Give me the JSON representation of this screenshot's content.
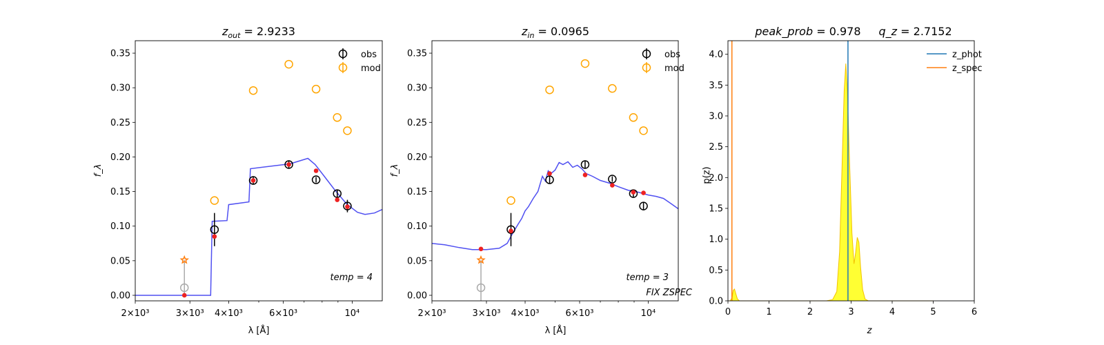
{
  "chart_data": [
    {
      "type": "scatter",
      "panel": "sed-zout",
      "title": "z_out = 2.9233",
      "title_parts": {
        "var": "z",
        "sub": "out",
        "rest": " = 2.9233"
      },
      "xlabel": "λ [Å]",
      "ylabel": "f_λ",
      "xscale": "log",
      "xlim": [
        2000,
        12500
      ],
      "ylim": [
        -0.008,
        0.368
      ],
      "xticks": [
        {
          "value": 2000,
          "label": "2×10³"
        },
        {
          "value": 3000,
          "label": "3×10³"
        },
        {
          "value": 4000,
          "label": "4×10³"
        },
        {
          "value": 6000,
          "label": "6×10³"
        },
        {
          "value": 10000,
          "label": "10⁴"
        }
      ],
      "yticks": [
        0.0,
        0.05,
        0.1,
        0.15,
        0.2,
        0.25,
        0.3,
        0.35
      ],
      "ytick_labels": [
        "0.00",
        "0.05",
        "0.10",
        "0.15",
        "0.20",
        "0.25",
        "0.30",
        "0.35"
      ],
      "annotation": "temp = 4",
      "annotation2": "",
      "legend": {
        "position": "top-right",
        "entries": [
          "obs",
          "mod"
        ]
      },
      "series": [
        {
          "name": "obs",
          "kind": "errorbar",
          "color": "#000000",
          "points": [
            {
              "x": 3600,
              "y": 0.095,
              "err": 0.024
            },
            {
              "x": 4800,
              "y": 0.166,
              "err": 0.006
            },
            {
              "x": 6250,
              "y": 0.189,
              "err": 0.005
            },
            {
              "x": 7650,
              "y": 0.167,
              "err": 0.004
            },
            {
              "x": 8950,
              "y": 0.147,
              "err": 0.006
            },
            {
              "x": 9650,
              "y": 0.129,
              "err": 0.009
            }
          ]
        },
        {
          "name": "mod",
          "kind": "open-circle",
          "color": "#ffa500",
          "points": [
            {
              "x": 3600,
              "y": 0.137
            },
            {
              "x": 4800,
              "y": 0.296
            },
            {
              "x": 6250,
              "y": 0.334
            },
            {
              "x": 7650,
              "y": 0.298
            },
            {
              "x": 8950,
              "y": 0.257
            },
            {
              "x": 9650,
              "y": 0.238
            }
          ]
        },
        {
          "name": "",
          "kind": "dot",
          "color": "#ee2222",
          "points": [
            {
              "x": 2880,
              "y": 0.0
            },
            {
              "x": 3600,
              "y": 0.085
            },
            {
              "x": 4800,
              "y": 0.166
            },
            {
              "x": 6250,
              "y": 0.189
            },
            {
              "x": 7650,
              "y": 0.18
            },
            {
              "x": 8950,
              "y": 0.138
            },
            {
              "x": 9650,
              "y": 0.128
            }
          ]
        },
        {
          "name": "",
          "kind": "line",
          "color": "#3c3cf0",
          "points": [
            {
              "x": 2000,
              "y": 0.0
            },
            {
              "x": 3500,
              "y": 0.0
            },
            {
              "x": 3540,
              "y": 0.107
            },
            {
              "x": 3950,
              "y": 0.108
            },
            {
              "x": 4000,
              "y": 0.131
            },
            {
              "x": 4650,
              "y": 0.135
            },
            {
              "x": 4700,
              "y": 0.183
            },
            {
              "x": 6300,
              "y": 0.19
            },
            {
              "x": 7200,
              "y": 0.198
            },
            {
              "x": 7600,
              "y": 0.189
            },
            {
              "x": 8100,
              "y": 0.173
            },
            {
              "x": 8800,
              "y": 0.152
            },
            {
              "x": 9600,
              "y": 0.132
            },
            {
              "x": 10400,
              "y": 0.12
            },
            {
              "x": 11000,
              "y": 0.117
            },
            {
              "x": 11800,
              "y": 0.119
            },
            {
              "x": 12500,
              "y": 0.124
            }
          ]
        },
        {
          "name": "",
          "kind": "stem",
          "color": "#aaaaaa",
          "star_color": "#ff7f0e",
          "points": [
            {
              "x": 2880,
              "y_low": 0.0,
              "y_circle": 0.011,
              "y_star": 0.051
            }
          ]
        }
      ]
    },
    {
      "type": "scatter",
      "panel": "sed-zin",
      "title": "z_in = 0.0965",
      "title_parts": {
        "var": "z",
        "sub": "in",
        "rest": " = 0.0965"
      },
      "xlabel": "λ [Å]",
      "ylabel": "f_λ",
      "xscale": "log",
      "xlim": [
        2000,
        12500
      ],
      "ylim": [
        -0.008,
        0.368
      ],
      "xticks": [
        {
          "value": 2000,
          "label": "2×10³"
        },
        {
          "value": 3000,
          "label": "3×10³"
        },
        {
          "value": 4000,
          "label": "4×10³"
        },
        {
          "value": 6000,
          "label": "6×10³"
        },
        {
          "value": 10000,
          "label": "10⁴"
        }
      ],
      "yticks": [
        0.0,
        0.05,
        0.1,
        0.15,
        0.2,
        0.25,
        0.3,
        0.35
      ],
      "ytick_labels": [
        "0.00",
        "0.05",
        "0.10",
        "0.15",
        "0.20",
        "0.25",
        "0.30",
        "0.35"
      ],
      "annotation": "temp = 3",
      "annotation2": "FIX ZSPEC",
      "legend": {
        "position": "top-right",
        "entries": [
          "obs",
          "mod"
        ]
      },
      "series": [
        {
          "name": "obs",
          "kind": "errorbar",
          "color": "#000000",
          "points": [
            {
              "x": 3600,
              "y": 0.095,
              "err": 0.024
            },
            {
              "x": 4800,
              "y": 0.167,
              "err": 0.006
            },
            {
              "x": 6250,
              "y": 0.189,
              "err": 0.006
            },
            {
              "x": 7650,
              "y": 0.168,
              "err": 0.004
            },
            {
              "x": 8950,
              "y": 0.147,
              "err": 0.005
            },
            {
              "x": 9650,
              "y": 0.129,
              "err": 0.006
            }
          ]
        },
        {
          "name": "mod",
          "kind": "open-circle",
          "color": "#ffa500",
          "points": [
            {
              "x": 3600,
              "y": 0.137
            },
            {
              "x": 4800,
              "y": 0.297
            },
            {
              "x": 6250,
              "y": 0.335
            },
            {
              "x": 7650,
              "y": 0.299
            },
            {
              "x": 8950,
              "y": 0.257
            },
            {
              "x": 9650,
              "y": 0.238
            }
          ]
        },
        {
          "name": "",
          "kind": "dot",
          "color": "#ee2222",
          "points": [
            {
              "x": 2880,
              "y": 0.067
            },
            {
              "x": 3600,
              "y": 0.093
            },
            {
              "x": 4800,
              "y": 0.176
            },
            {
              "x": 6250,
              "y": 0.174
            },
            {
              "x": 7650,
              "y": 0.159
            },
            {
              "x": 8950,
              "y": 0.149
            },
            {
              "x": 9650,
              "y": 0.148
            }
          ]
        },
        {
          "name": "",
          "kind": "line",
          "color": "#3c3cf0",
          "points": [
            {
              "x": 2000,
              "y": 0.075
            },
            {
              "x": 2200,
              "y": 0.073
            },
            {
              "x": 2450,
              "y": 0.069
            },
            {
              "x": 2700,
              "y": 0.066
            },
            {
              "x": 3000,
              "y": 0.066
            },
            {
              "x": 3300,
              "y": 0.068
            },
            {
              "x": 3500,
              "y": 0.075
            },
            {
              "x": 3650,
              "y": 0.09
            },
            {
              "x": 3800,
              "y": 0.103
            },
            {
              "x": 3900,
              "y": 0.111
            },
            {
              "x": 4000,
              "y": 0.122
            },
            {
              "x": 4100,
              "y": 0.128
            },
            {
              "x": 4250,
              "y": 0.14
            },
            {
              "x": 4400,
              "y": 0.15
            },
            {
              "x": 4550,
              "y": 0.172
            },
            {
              "x": 4650,
              "y": 0.165
            },
            {
              "x": 4750,
              "y": 0.18
            },
            {
              "x": 4850,
              "y": 0.176
            },
            {
              "x": 5000,
              "y": 0.181
            },
            {
              "x": 5150,
              "y": 0.192
            },
            {
              "x": 5300,
              "y": 0.189
            },
            {
              "x": 5500,
              "y": 0.193
            },
            {
              "x": 5700,
              "y": 0.185
            },
            {
              "x": 5900,
              "y": 0.188
            },
            {
              "x": 6100,
              "y": 0.183
            },
            {
              "x": 6300,
              "y": 0.176
            },
            {
              "x": 6600,
              "y": 0.172
            },
            {
              "x": 7000,
              "y": 0.166
            },
            {
              "x": 7500,
              "y": 0.162
            },
            {
              "x": 8000,
              "y": 0.157
            },
            {
              "x": 8600,
              "y": 0.152
            },
            {
              "x": 9300,
              "y": 0.149
            },
            {
              "x": 10000,
              "y": 0.145
            },
            {
              "x": 10600,
              "y": 0.143
            },
            {
              "x": 11200,
              "y": 0.14
            },
            {
              "x": 11800,
              "y": 0.133
            },
            {
              "x": 12500,
              "y": 0.125
            }
          ]
        },
        {
          "name": "",
          "kind": "stem",
          "color": "#aaaaaa",
          "star_color": "#ff7f0e",
          "points": [
            {
              "x": 2880,
              "y_low": -0.008,
              "y_circle": 0.011,
              "y_star": 0.051
            }
          ]
        }
      ]
    },
    {
      "type": "area",
      "panel": "pz",
      "title": "peak_prob = 0.978     q_z = 2.7152",
      "title_parts": {
        "left": "peak_prob",
        "left_val": " = 0.978",
        "right": "q_z",
        "right_val": " = 2.7152"
      },
      "xlabel": "z",
      "ylabel": "p(z)",
      "xlim": [
        0,
        6
      ],
      "ylim": [
        0,
        4.22
      ],
      "xticks": [
        0,
        1,
        2,
        3,
        4,
        5,
        6
      ],
      "xtick_labels": [
        "0",
        "1",
        "2",
        "3",
        "4",
        "5",
        "6"
      ],
      "yticks": [
        0.0,
        0.5,
        1.0,
        1.5,
        2.0,
        2.5,
        3.0,
        3.5,
        4.0
      ],
      "ytick_labels": [
        "0.0",
        "0.5",
        "1.0",
        "1.5",
        "2.0",
        "2.5",
        "3.0",
        "3.5",
        "4.0"
      ],
      "legend": {
        "position": "top-right",
        "entries": [
          "z_phot",
          "z_spec"
        ]
      },
      "vlines": [
        {
          "name": "z_phot",
          "x": 2.9233,
          "color": "#1f77b4"
        },
        {
          "name": "z_spec",
          "x": 0.0965,
          "color": "#ff7f0e"
        }
      ],
      "fill_color": "#ffff33",
      "edge_color": "#f2c200",
      "pz": [
        [
          0.0,
          0.0
        ],
        [
          0.05,
          0.0
        ],
        [
          0.1,
          0.05
        ],
        [
          0.13,
          0.17
        ],
        [
          0.16,
          0.19
        ],
        [
          0.19,
          0.12
        ],
        [
          0.23,
          0.03
        ],
        [
          0.28,
          0.0
        ],
        [
          2.4,
          0.0
        ],
        [
          2.55,
          0.02
        ],
        [
          2.65,
          0.15
        ],
        [
          2.72,
          0.8
        ],
        [
          2.78,
          2.2
        ],
        [
          2.83,
          3.4
        ],
        [
          2.87,
          3.85
        ],
        [
          2.91,
          3.4
        ],
        [
          2.96,
          2.3
        ],
        [
          3.02,
          1.1
        ],
        [
          3.07,
          0.6
        ],
        [
          3.11,
          0.78
        ],
        [
          3.15,
          1.03
        ],
        [
          3.19,
          0.95
        ],
        [
          3.23,
          0.55
        ],
        [
          3.28,
          0.18
        ],
        [
          3.34,
          0.03
        ],
        [
          3.42,
          0.0
        ],
        [
          5.0,
          0.0
        ]
      ]
    }
  ]
}
